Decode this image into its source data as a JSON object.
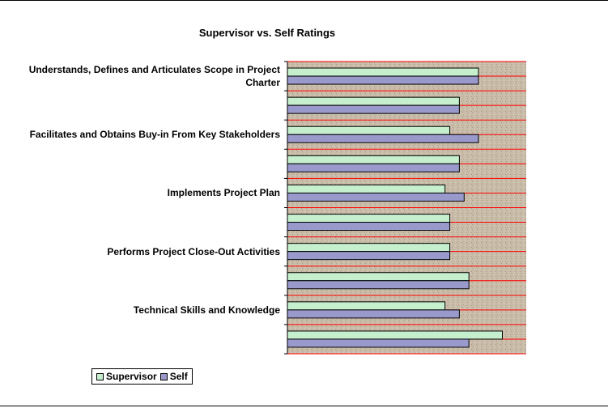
{
  "chart_data": {
    "type": "bar",
    "orientation": "horizontal",
    "title": "Supervisor vs. Self Ratings",
    "xlabel": "",
    "ylabel": "",
    "grid": true,
    "legend_position": "bottom-left",
    "categories": [
      "Understands, Defines and Articulates Scope in Project Charter",
      "",
      "Facilitates and Obtains Buy-in From Key Stakeholders",
      "",
      "Implements Project Plan",
      "",
      "Performs Project Close-Out Activities",
      "",
      "Technical Skills and Knowledge",
      ""
    ],
    "xlim": [
      0,
      5
    ],
    "series": [
      {
        "name": "Supervisor",
        "color": "#c6efce",
        "values": [
          4.0,
          3.6,
          3.4,
          3.6,
          3.3,
          3.4,
          3.4,
          3.8,
          3.3,
          4.5
        ]
      },
      {
        "name": "Self",
        "color": "#9999cc",
        "values": [
          4.0,
          3.6,
          4.0,
          3.6,
          3.7,
          3.4,
          3.4,
          3.8,
          3.6,
          3.8
        ]
      }
    ],
    "colors": {
      "plot_background": "#c8bba8",
      "gridline": "#ff0000"
    }
  }
}
